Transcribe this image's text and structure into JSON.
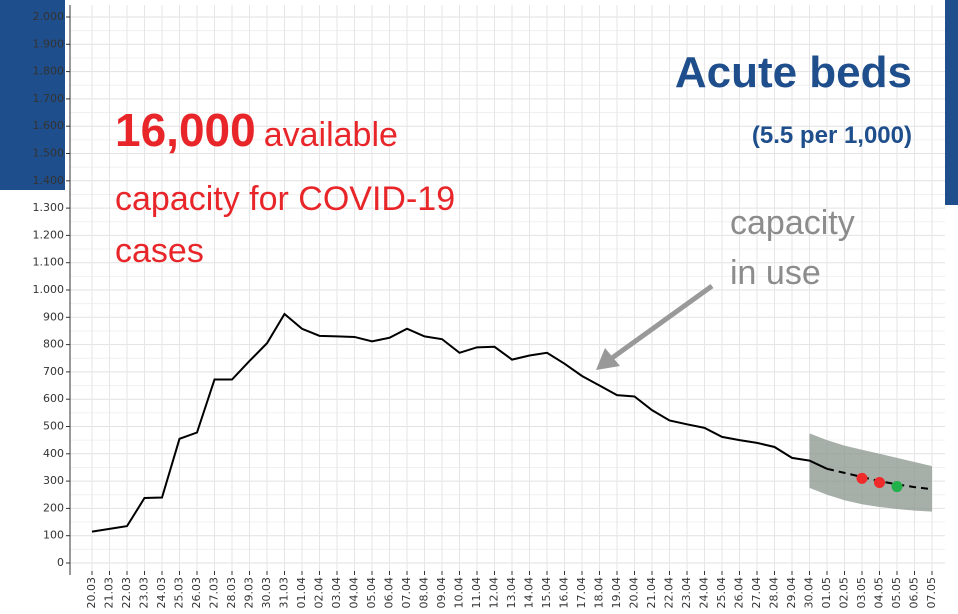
{
  "chart_data": {
    "type": "line",
    "categories": [
      "20.03",
      "21.03",
      "22.03",
      "23.03",
      "24.03",
      "25.03",
      "26.03",
      "27.03",
      "28.03",
      "29.03",
      "30.03",
      "31.03",
      "01.04",
      "02.04",
      "03.04",
      "04.04",
      "05.04",
      "06.04",
      "07.04",
      "08.04",
      "09.04",
      "10.04",
      "11.04",
      "12.04",
      "13.04",
      "14.04",
      "15.04",
      "16.04",
      "17.04",
      "18.04",
      "19.04",
      "20.04",
      "21.04",
      "22.04",
      "23.04",
      "24.04",
      "25.04",
      "26.04",
      "27.04",
      "28.04",
      "29.04",
      "30.04",
      "01.05",
      "02.05",
      "03.05",
      "04.05",
      "05.05",
      "06.05",
      "07.05"
    ],
    "series": [
      {
        "color": "#000000",
        "style": "solid",
        "values": [
          115,
          125,
          135,
          238,
          240,
          455,
          478,
          672,
          672,
          740,
          805,
          912,
          858,
          832,
          830,
          828,
          812,
          825,
          858,
          830,
          820,
          770,
          790,
          792,
          745,
          760,
          770,
          730,
          685,
          650,
          615,
          610,
          560,
          522,
          508,
          495,
          462,
          450,
          440,
          425,
          385,
          375,
          345,
          null,
          null,
          null,
          null,
          null,
          null
        ]
      },
      {
        "color": "#000000",
        "style": "dashed",
        "values": [
          null,
          null,
          null,
          null,
          null,
          null,
          null,
          null,
          null,
          null,
          null,
          null,
          null,
          null,
          null,
          null,
          null,
          null,
          null,
          null,
          null,
          null,
          null,
          null,
          null,
          null,
          null,
          null,
          null,
          null,
          null,
          null,
          null,
          null,
          null,
          null,
          null,
          null,
          null,
          null,
          null,
          null,
          345,
          330,
          315,
          300,
          288,
          278,
          270
        ]
      },
      {
        "color": "#ee2a2a",
        "style": "marker",
        "values": [
          null,
          null,
          null,
          null,
          null,
          null,
          null,
          null,
          null,
          null,
          null,
          null,
          null,
          null,
          null,
          null,
          null,
          null,
          null,
          null,
          null,
          null,
          null,
          null,
          null,
          null,
          null,
          null,
          null,
          null,
          null,
          null,
          null,
          null,
          null,
          null,
          null,
          null,
          null,
          null,
          null,
          null,
          null,
          null,
          310,
          295,
          null,
          null,
          null
        ]
      },
      {
        "color": "#22b04b",
        "style": "marker",
        "values": [
          null,
          null,
          null,
          null,
          null,
          null,
          null,
          null,
          null,
          null,
          null,
          null,
          null,
          null,
          null,
          null,
          null,
          null,
          null,
          null,
          null,
          null,
          null,
          null,
          null,
          null,
          null,
          null,
          null,
          null,
          null,
          null,
          null,
          null,
          null,
          null,
          null,
          null,
          null,
          null,
          null,
          null,
          null,
          null,
          null,
          null,
          280,
          null,
          null
        ]
      }
    ],
    "band": {
      "color": "#8a948c",
      "upper": [
        null,
        null,
        null,
        null,
        null,
        null,
        null,
        null,
        null,
        null,
        null,
        null,
        null,
        null,
        null,
        null,
        null,
        null,
        null,
        null,
        null,
        null,
        null,
        null,
        null,
        null,
        null,
        null,
        null,
        null,
        null,
        null,
        null,
        null,
        null,
        null,
        null,
        null,
        null,
        null,
        null,
        475,
        450,
        430,
        415,
        400,
        385,
        370,
        355
      ],
      "lower": [
        null,
        null,
        null,
        null,
        null,
        null,
        null,
        null,
        null,
        null,
        null,
        null,
        null,
        null,
        null,
        null,
        null,
        null,
        null,
        null,
        null,
        null,
        null,
        null,
        null,
        null,
        null,
        null,
        null,
        null,
        null,
        null,
        null,
        null,
        null,
        null,
        null,
        null,
        null,
        null,
        null,
        275,
        250,
        230,
        215,
        205,
        198,
        192,
        188
      ]
    },
    "ylim": [
      0,
      2000
    ],
    "yticks": [
      0,
      100,
      200,
      300,
      400,
      500,
      600,
      700,
      800,
      900,
      {
        "value": 1000,
        "label": "1.000"
      },
      {
        "value": 1100,
        "label": "1.100"
      },
      {
        "value": 1200,
        "label": "1.200"
      },
      {
        "value": 1300,
        "label": "1.300"
      },
      {
        "value": 1400,
        "label": "1.400"
      },
      {
        "value": 1500,
        "label": "1.500"
      },
      {
        "value": 1600,
        "label": "1.600"
      },
      {
        "value": 1700,
        "label": "1.700"
      },
      {
        "value": 1800,
        "label": "1.800"
      },
      {
        "value": 1900,
        "label": "1.900"
      },
      {
        "value": 2000,
        "label": "2.000"
      }
    ],
    "grid": true,
    "annotations": {
      "title": "Acute beds",
      "subtitle": "(5.5 per 1,000)",
      "capacity_number": "16,000",
      "capacity_text": [
        "available",
        "capacity for COVID-19",
        "cases"
      ],
      "in_use": [
        "capacity",
        "in use"
      ]
    }
  }
}
